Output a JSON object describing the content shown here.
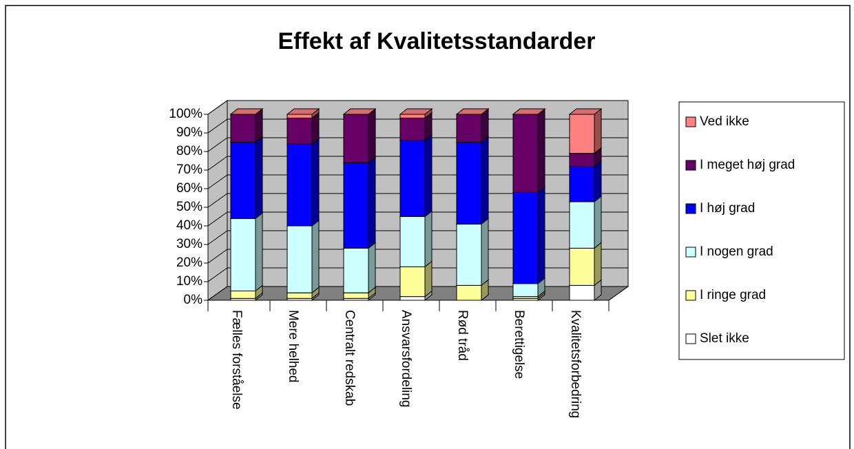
{
  "chart_data": {
    "type": "bar",
    "stacked": true,
    "title": "Effekt af Kvalitetsstandarder",
    "categories": [
      "Fælles forståelse",
      "Mere helhed",
      "Centralt redskab",
      "Ansvarsfordeling",
      "Rød tråd",
      "Berettigelse",
      "Kvalitetsforbedring"
    ],
    "series": [
      {
        "name": "Slet ikke",
        "color": "#ffffff",
        "values": [
          1,
          1,
          1,
          2,
          0,
          1,
          8
        ]
      },
      {
        "name": "I ringe grad",
        "color": "#ffff99",
        "values": [
          4,
          3,
          3,
          16,
          8,
          1,
          20
        ]
      },
      {
        "name": "I nogen grad",
        "color": "#ccffff",
        "values": [
          39,
          36,
          24,
          27,
          33,
          7,
          25
        ]
      },
      {
        "name": "I høj grad",
        "color": "#0000ff",
        "values": [
          41,
          44,
          46,
          41,
          44,
          49,
          19
        ]
      },
      {
        "name": "I meget høj grad",
        "color": "#660066",
        "values": [
          15,
          14,
          26,
          12,
          15,
          42,
          7
        ]
      },
      {
        "name": "Ved ikke",
        "color": "#ff8080",
        "values": [
          0,
          2,
          0,
          2,
          0,
          0,
          21
        ]
      }
    ],
    "ylim": [
      0,
      100
    ],
    "yticks": [
      {
        "value": 0,
        "label": "0%"
      },
      {
        "value": 10,
        "label": "10%"
      },
      {
        "value": 20,
        "label": "20%"
      },
      {
        "value": 30,
        "label": "30%"
      },
      {
        "value": 40,
        "label": "40%"
      },
      {
        "value": 50,
        "label": "50%"
      },
      {
        "value": 60,
        "label": "60%"
      },
      {
        "value": 70,
        "label": "70%"
      },
      {
        "value": 80,
        "label": "80%"
      },
      {
        "value": 90,
        "label": "90%"
      },
      {
        "value": 100,
        "label": "100%"
      }
    ],
    "grid": true,
    "legend": "right"
  }
}
